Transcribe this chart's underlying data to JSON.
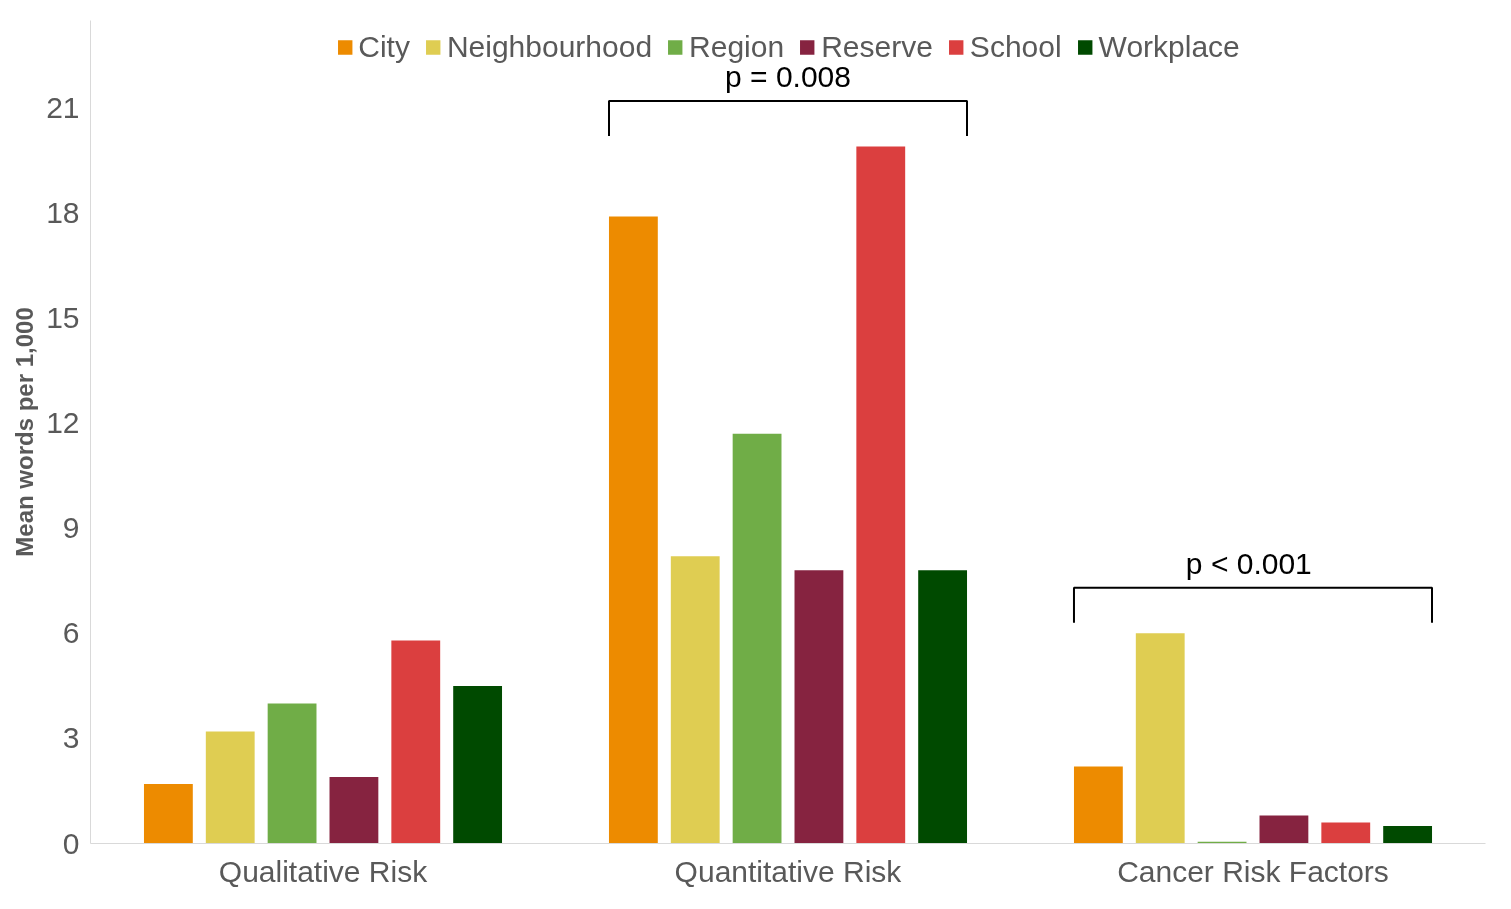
{
  "chart_data": {
    "type": "bar",
    "ylabel": "Mean words per 1,000",
    "categories": [
      "Qualitative Risk",
      "Quantitative Risk",
      "Cancer Risk Factors"
    ],
    "series": [
      {
        "name": "City",
        "color": "#ed8b00",
        "values": [
          1.7,
          17.9,
          2.2
        ]
      },
      {
        "name": "Neighbourhood",
        "color": "#dfcd52",
        "values": [
          3.2,
          8.2,
          6.0
        ]
      },
      {
        "name": "Region",
        "color": "#70ad47",
        "values": [
          4.0,
          11.7,
          0.05
        ]
      },
      {
        "name": "Reserve",
        "color": "#862340",
        "values": [
          1.9,
          7.8,
          0.8
        ]
      },
      {
        "name": "School",
        "color": "#db3f3f",
        "values": [
          5.8,
          19.9,
          0.6
        ]
      },
      {
        "name": "Workplace",
        "color": "#004a00",
        "values": [
          4.5,
          7.8,
          0.5
        ]
      }
    ],
    "ylim": [
      0,
      23.5
    ],
    "yticks": [
      0,
      3,
      6,
      9,
      12,
      15,
      18,
      21
    ],
    "grid": false,
    "legend": "top",
    "annotations": [
      "p = 0.008",
      "p  < 0.001"
    ]
  }
}
